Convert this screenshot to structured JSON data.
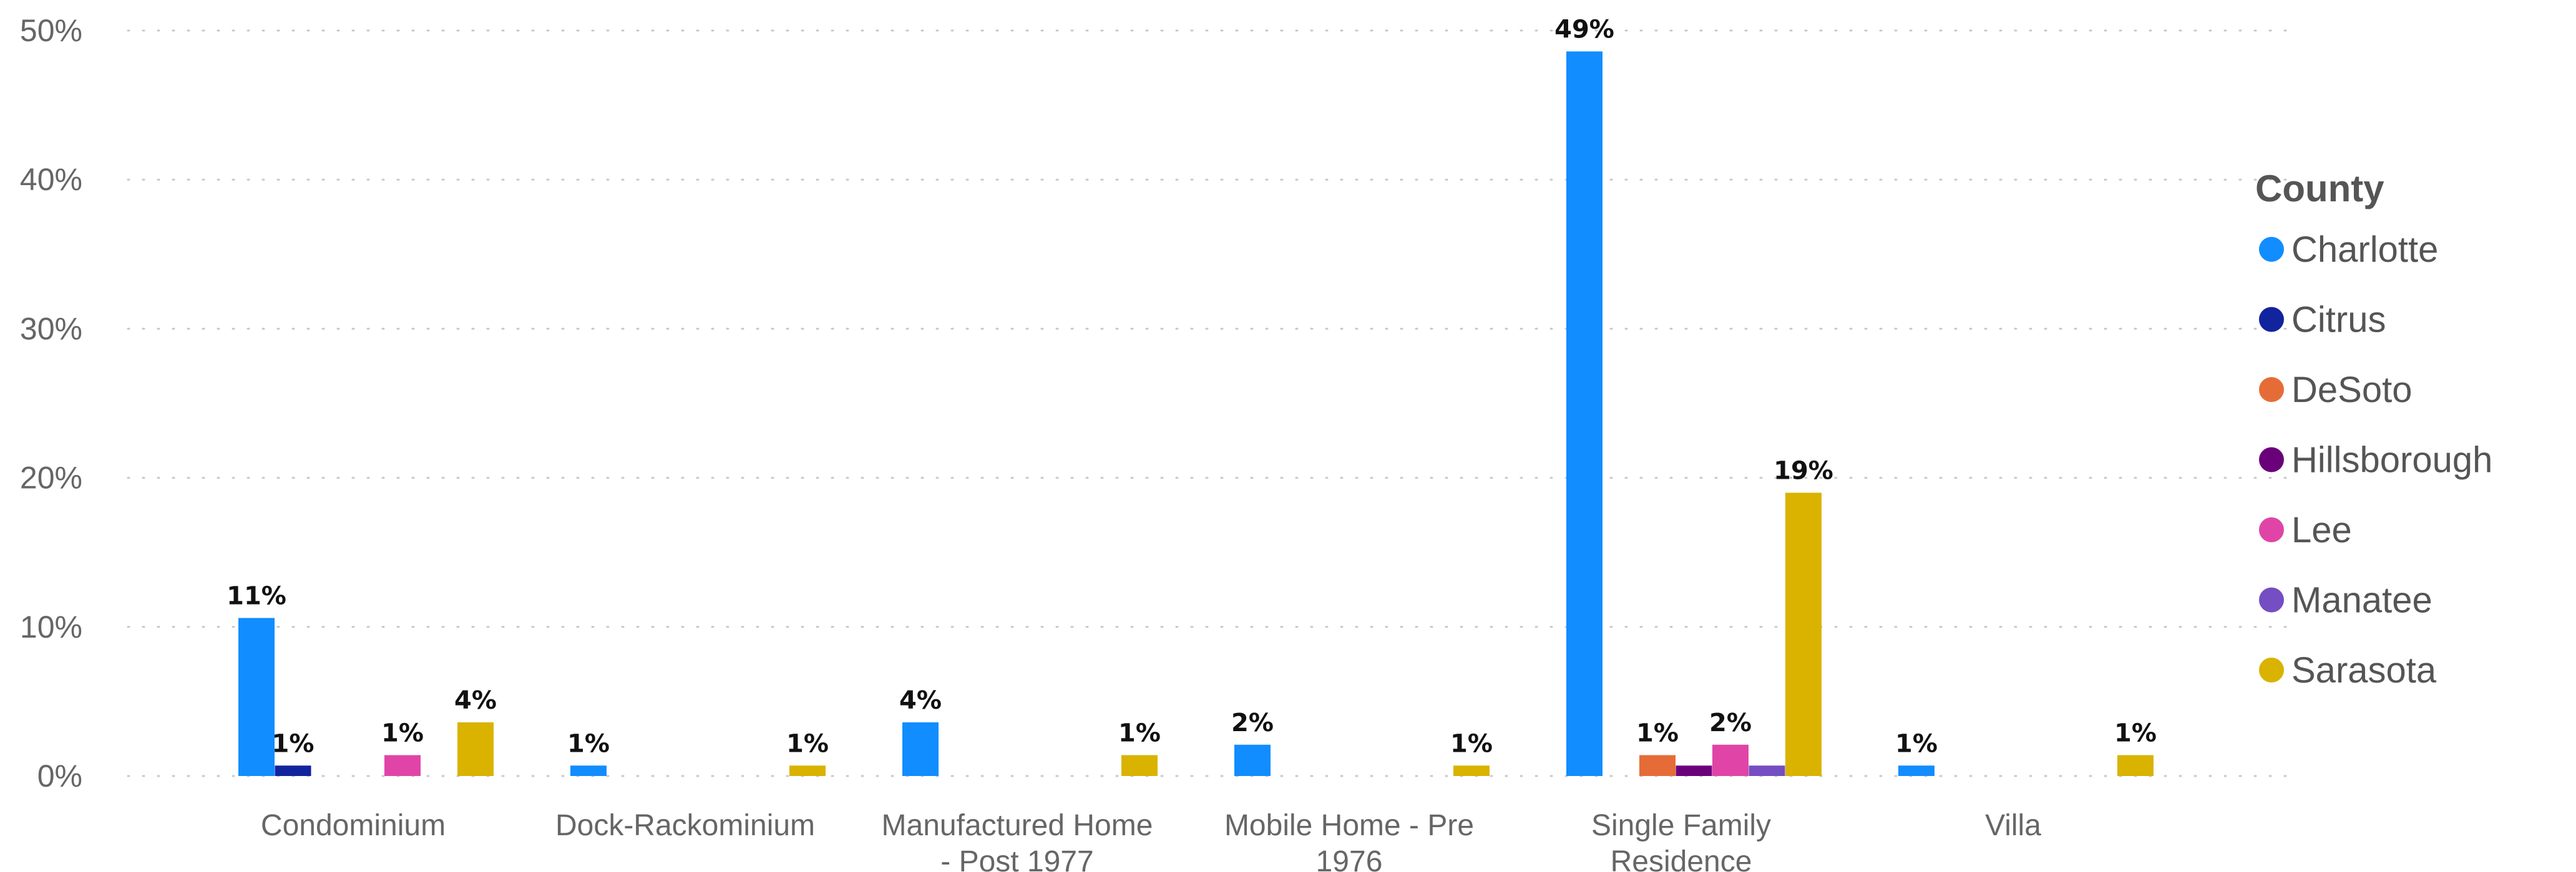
{
  "chart_data": {
    "type": "bar",
    "ylim": [
      0,
      50
    ],
    "y_tick_values": [
      0,
      10,
      20,
      30,
      40,
      50
    ],
    "y_tick_labels": [
      "0%",
      "10%",
      "20%",
      "30%",
      "40%",
      "50%"
    ],
    "grid": true,
    "legend_placement": "right",
    "legend_title": "County",
    "categories": [
      [
        "Condominium"
      ],
      [
        "Dock-Rackominium"
      ],
      [
        "Manufactured Home",
        "- Post 1977"
      ],
      [
        "Mobile Home - Pre",
        "1976"
      ],
      [
        "Single Family",
        "Residence"
      ],
      [
        "Villa"
      ]
    ],
    "series": [
      {
        "name": "Charlotte",
        "color": "#118DFF",
        "values": [
          10.6,
          0.7,
          3.6,
          2.1,
          48.6,
          0.7
        ],
        "labels": [
          "11%",
          "1%",
          "4%",
          "2%",
          "49%",
          "1%"
        ]
      },
      {
        "name": "Citrus",
        "color": "#12239E",
        "values": [
          0.7,
          null,
          null,
          null,
          null,
          null
        ],
        "labels": [
          "1%",
          "",
          "",
          "",
          "",
          ""
        ]
      },
      {
        "name": "DeSoto",
        "color": "#E66C37",
        "values": [
          null,
          null,
          null,
          null,
          1.4,
          null
        ],
        "labels": [
          "",
          "",
          "",
          "",
          "1%",
          ""
        ]
      },
      {
        "name": "Hillsborough",
        "color": "#6B007B",
        "values": [
          null,
          null,
          null,
          null,
          0.7,
          null
        ],
        "labels": [
          "",
          "",
          "",
          "",
          "",
          ""
        ]
      },
      {
        "name": "Lee",
        "color": "#E044A7",
        "values": [
          1.4,
          null,
          null,
          null,
          2.1,
          null
        ],
        "labels": [
          "1%",
          "",
          "",
          "",
          "2%",
          ""
        ]
      },
      {
        "name": "Manatee",
        "color": "#744EC2",
        "values": [
          null,
          null,
          null,
          null,
          0.7,
          null
        ],
        "labels": [
          "",
          "",
          "",
          "",
          "",
          ""
        ]
      },
      {
        "name": "Sarasota",
        "color": "#D9B300",
        "values": [
          3.6,
          0.7,
          1.4,
          0.7,
          19.0,
          1.4
        ],
        "labels": [
          "4%",
          "1%",
          "1%",
          "1%",
          "19%",
          "1%"
        ]
      }
    ]
  }
}
